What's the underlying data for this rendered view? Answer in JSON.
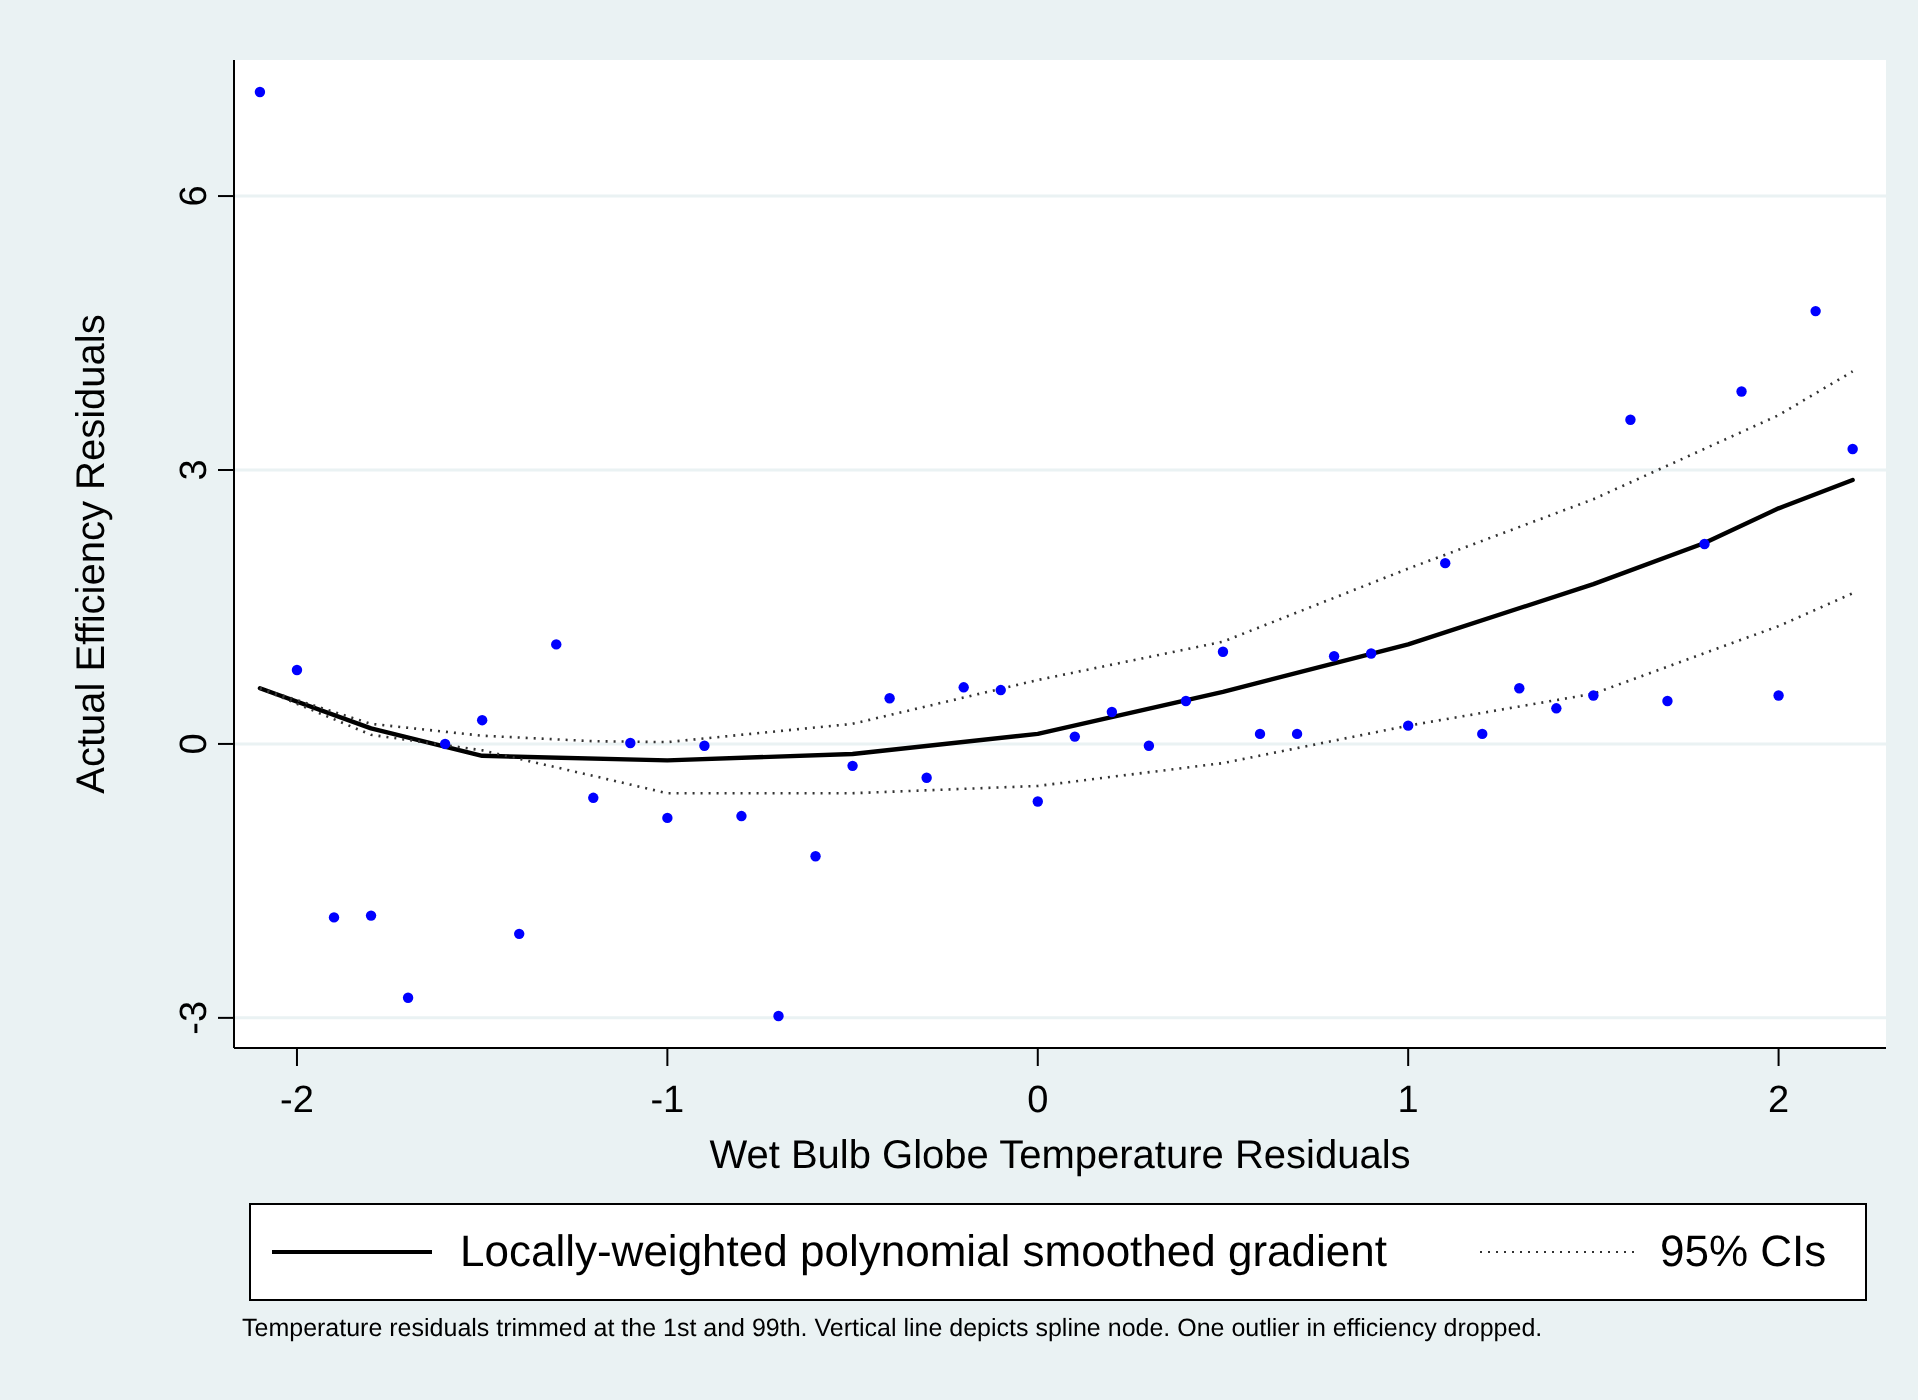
{
  "chart_data": {
    "type": "scatter",
    "xlabel": "Wet Bulb Globe Temperature Residuals",
    "ylabel": "Actual Efficiency Residuals",
    "annotations": [
      "Temperature residuals trimmed at the 1st and 99th. Vertical line depicts spline node. One outlier in efficiency dropped."
    ],
    "xlim": [
      -2.17,
      2.29
    ],
    "ylim": [
      -3.33,
      7.49
    ],
    "xticks": [
      -2,
      -1,
      0,
      1,
      2
    ],
    "yticks": [
      -3,
      0,
      3,
      6
    ],
    "grid": "y",
    "legend": "bottom",
    "series": [
      {
        "color": "#0000ff",
        "marker": "circle",
        "x": [
          -2.1,
          -2.0,
          -1.9,
          -1.8,
          -1.7,
          -1.6,
          -1.5,
          -1.4,
          -1.3,
          -1.2,
          -1.1,
          -1.0,
          -0.9,
          -0.8,
          -0.7,
          -0.6,
          -0.5,
          -0.4,
          -0.3,
          -0.2,
          -0.1,
          0.0,
          0.1,
          0.2,
          0.3,
          0.4,
          0.5,
          0.6,
          0.7,
          0.8,
          0.9,
          1.0,
          1.1,
          1.2,
          1.3,
          1.4,
          1.5,
          1.6,
          1.7,
          1.8,
          1.9,
          2.0,
          2.1,
          2.2
        ],
        "values": [
          7.14,
          0.81,
          -1.9,
          -1.88,
          -2.78,
          0.0,
          0.26,
          -2.08,
          1.09,
          -0.59,
          0.01,
          -0.81,
          -0.02,
          -0.79,
          -2.98,
          -1.23,
          -0.24,
          0.5,
          -0.37,
          0.62,
          0.59,
          -0.63,
          0.08,
          0.35,
          -0.02,
          0.47,
          1.01,
          0.11,
          0.11,
          0.96,
          0.99,
          0.2,
          1.98,
          0.11,
          0.61,
          0.39,
          0.53,
          3.55,
          0.47,
          2.19,
          3.86,
          0.53,
          4.74,
          3.23
        ]
      },
      {
        "type": "line",
        "name": "Locally-weighted polynomial smoothed gradient",
        "color": "#000000",
        "line_style": "solid",
        "x": [
          -2.1,
          -1.8,
          -1.5,
          -1.0,
          -0.5,
          0.0,
          0.5,
          1.0,
          1.5,
          1.8,
          2.0,
          2.2
        ],
        "values": [
          0.61,
          0.17,
          -0.13,
          -0.18,
          -0.11,
          0.11,
          0.57,
          1.09,
          1.75,
          2.2,
          2.58,
          2.89
        ]
      },
      {
        "type": "line",
        "name": "95% CIs",
        "color": "#333333",
        "line_style": "dotted",
        "x": [
          -2.1,
          -1.8,
          -1.5,
          -1.2,
          -1.0,
          -0.5,
          0.0,
          0.5,
          1.0,
          1.5,
          2.0,
          2.2
        ],
        "values": [
          0.61,
          0.22,
          0.09,
          0.03,
          0.02,
          0.22,
          0.7,
          1.12,
          1.92,
          2.68,
          3.6,
          4.08
        ]
      },
      {
        "type": "line",
        "color": "#333333",
        "line_style": "dotted",
        "x": [
          -2.1,
          -1.8,
          -1.5,
          -1.2,
          -1.0,
          -0.5,
          0.0,
          0.5,
          1.0,
          1.5,
          2.0,
          2.2
        ],
        "values": [
          0.61,
          0.1,
          -0.07,
          -0.35,
          -0.54,
          -0.54,
          -0.46,
          -0.21,
          0.2,
          0.55,
          1.29,
          1.65
        ]
      }
    ]
  }
}
